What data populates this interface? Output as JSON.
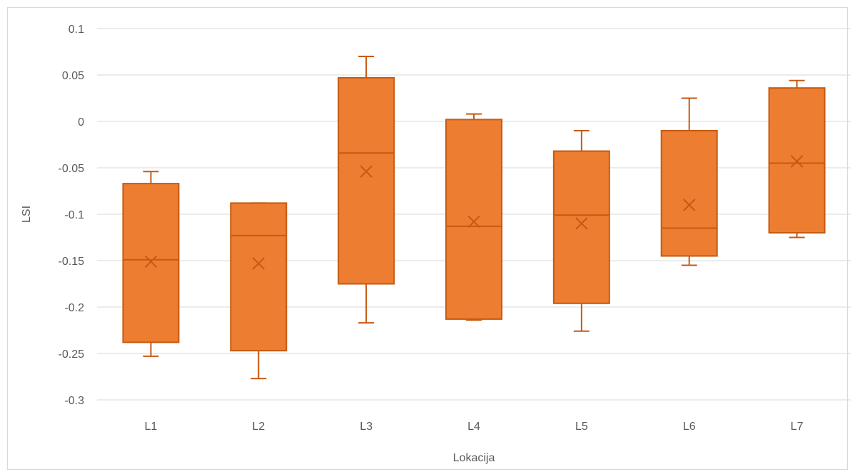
{
  "chart_data": {
    "type": "boxplot",
    "title": "",
    "xlabel": "Lokacija",
    "ylabel": "LSI",
    "ylim": [
      -0.3,
      0.1
    ],
    "yticks": [
      "0.1",
      "0.05",
      "0",
      "-0.05",
      "-0.1",
      "-0.15",
      "-0.2",
      "-0.25",
      "-0.3"
    ],
    "ytick_values": [
      0.1,
      0.05,
      0,
      -0.05,
      -0.1,
      -0.15,
      -0.2,
      -0.25,
      -0.3
    ],
    "grid": "horizontal",
    "legend": "none",
    "colors": {
      "box_fill": "#ED7D31",
      "box_edge": "#C55A11",
      "grid": "#d9d9d9",
      "text": "#595959"
    },
    "categories": [
      "L1",
      "L2",
      "L3",
      "L4",
      "L5",
      "L6",
      "L7"
    ],
    "boxes": [
      {
        "category": "L1",
        "min": -0.253,
        "q1": -0.238,
        "median": -0.149,
        "q3": -0.067,
        "max": -0.054,
        "mean": -0.151
      },
      {
        "category": "L2",
        "min": -0.277,
        "q1": -0.247,
        "median": -0.123,
        "q3": -0.088,
        "max": -0.088,
        "mean": -0.153
      },
      {
        "category": "L3",
        "min": -0.217,
        "q1": -0.175,
        "median": -0.034,
        "q3": 0.047,
        "max": 0.07,
        "mean": -0.054
      },
      {
        "category": "L4",
        "min": -0.214,
        "q1": -0.213,
        "median": -0.113,
        "q3": 0.002,
        "max": 0.008,
        "mean": -0.108
      },
      {
        "category": "L5",
        "min": -0.226,
        "q1": -0.196,
        "median": -0.101,
        "q3": -0.032,
        "max": -0.01,
        "mean": -0.11
      },
      {
        "category": "L6",
        "min": -0.155,
        "q1": -0.145,
        "median": -0.115,
        "q3": -0.01,
        "max": 0.025,
        "mean": -0.09
      },
      {
        "category": "L7",
        "min": -0.125,
        "q1": -0.12,
        "median": -0.045,
        "q3": 0.036,
        "max": 0.044,
        "mean": -0.043
      }
    ]
  }
}
